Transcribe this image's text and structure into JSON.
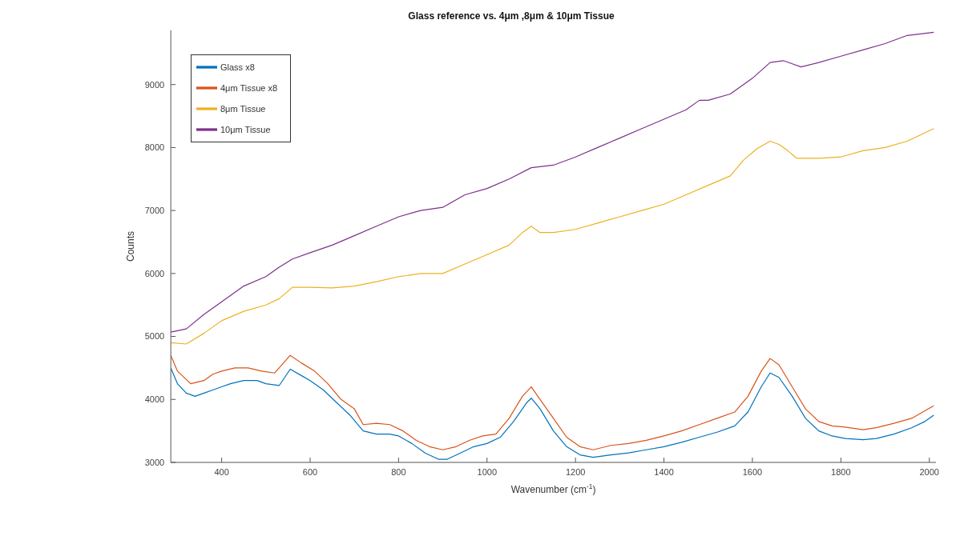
{
  "chart_data": {
    "type": "line",
    "title": "Glass reference vs. 4μm ,8μm & 10μm Tissue",
    "xlabel": "Wavenumber (cm$^{-1}$)",
    "ylabel": "Counts",
    "xlim": [
      285,
      2015
    ],
    "ylim": [
      3000,
      9860
    ],
    "xticks": [
      400,
      600,
      800,
      1000,
      1200,
      1400,
      1600,
      1800,
      2000
    ],
    "yticks": [
      3000,
      4000,
      5000,
      6000,
      7000,
      8000,
      9000
    ],
    "legend": "top left",
    "marker": "none",
    "line_style": "solid",
    "series": [
      {
        "name": "Glass x8",
        "color": "#0072bd",
        "x": [
          285,
          300,
          320,
          340,
          360,
          380,
          400,
          420,
          450,
          480,
          500,
          530,
          555,
          580,
          600,
          630,
          660,
          690,
          720,
          750,
          780,
          800,
          830,
          860,
          890,
          910,
          940,
          970,
          1000,
          1030,
          1060,
          1090,
          1100,
          1120,
          1150,
          1180,
          1210,
          1240,
          1280,
          1320,
          1360,
          1400,
          1440,
          1480,
          1520,
          1560,
          1590,
          1620,
          1640,
          1660,
          1690,
          1720,
          1750,
          1780,
          1810,
          1850,
          1880,
          1920,
          1960,
          1990,
          2010
        ],
        "values": [
          4500,
          4250,
          4100,
          4050,
          4100,
          4150,
          4200,
          4250,
          4300,
          4300,
          4250,
          4220,
          4480,
          4380,
          4300,
          4150,
          3950,
          3750,
          3500,
          3450,
          3450,
          3420,
          3300,
          3150,
          3050,
          3050,
          3150,
          3250,
          3300,
          3400,
          3650,
          3950,
          4020,
          3850,
          3500,
          3250,
          3120,
          3080,
          3120,
          3150,
          3200,
          3250,
          3320,
          3400,
          3480,
          3580,
          3800,
          4200,
          4420,
          4350,
          4050,
          3700,
          3500,
          3420,
          3380,
          3360,
          3380,
          3450,
          3550,
          3650,
          3750
        ]
      },
      {
        "name": "4μm Tissue x8",
        "color": "#d95319",
        "x": [
          285,
          300,
          330,
          360,
          380,
          400,
          430,
          460,
          490,
          520,
          555,
          580,
          610,
          640,
          670,
          700,
          720,
          750,
          780,
          810,
          840,
          870,
          900,
          930,
          960,
          990,
          1020,
          1050,
          1080,
          1100,
          1120,
          1150,
          1180,
          1210,
          1240,
          1280,
          1320,
          1360,
          1400,
          1440,
          1480,
          1520,
          1560,
          1590,
          1620,
          1640,
          1660,
          1690,
          1720,
          1750,
          1780,
          1810,
          1850,
          1880,
          1920,
          1960,
          1990,
          2010
        ],
        "values": [
          4700,
          4450,
          4250,
          4300,
          4400,
          4450,
          4500,
          4500,
          4450,
          4420,
          4700,
          4580,
          4450,
          4250,
          4000,
          3850,
          3600,
          3620,
          3600,
          3500,
          3350,
          3250,
          3200,
          3250,
          3350,
          3420,
          3450,
          3700,
          4050,
          4200,
          4000,
          3700,
          3400,
          3250,
          3200,
          3270,
          3300,
          3350,
          3420,
          3500,
          3600,
          3700,
          3800,
          4050,
          4450,
          4650,
          4550,
          4200,
          3850,
          3650,
          3580,
          3560,
          3520,
          3550,
          3620,
          3700,
          3820,
          3900
        ]
      },
      {
        "name": "8μm Tissue",
        "color": "#edb120",
        "x": [
          285,
          320,
          360,
          400,
          450,
          500,
          530,
          560,
          600,
          650,
          700,
          750,
          800,
          850,
          900,
          950,
          1000,
          1050,
          1080,
          1100,
          1120,
          1150,
          1200,
          1250,
          1300,
          1350,
          1400,
          1450,
          1500,
          1550,
          1580,
          1610,
          1640,
          1660,
          1680,
          1700,
          1750,
          1800,
          1850,
          1900,
          1950,
          2010
        ],
        "values": [
          4900,
          4880,
          5050,
          5250,
          5400,
          5500,
          5600,
          5780,
          5780,
          5770,
          5800,
          5870,
          5950,
          6000,
          6000,
          6150,
          6300,
          6450,
          6650,
          6750,
          6650,
          6650,
          6700,
          6800,
          6900,
          7000,
          7100,
          7250,
          7400,
          7550,
          7800,
          7980,
          8100,
          8050,
          7950,
          7830,
          7830,
          7850,
          7950,
          8000,
          8100,
          8300
        ]
      },
      {
        "name": "10μm Tissue",
        "color": "#7e2f8e",
        "x": [
          285,
          320,
          360,
          400,
          450,
          500,
          530,
          560,
          600,
          650,
          700,
          750,
          800,
          850,
          900,
          950,
          1000,
          1050,
          1100,
          1150,
          1200,
          1250,
          1300,
          1350,
          1400,
          1450,
          1480,
          1500,
          1550,
          1600,
          1640,
          1670,
          1690,
          1710,
          1750,
          1800,
          1850,
          1900,
          1950,
          2010
        ],
        "values": [
          5070,
          5120,
          5350,
          5550,
          5800,
          5950,
          6100,
          6230,
          6330,
          6450,
          6600,
          6750,
          6900,
          7000,
          7050,
          7250,
          7350,
          7500,
          7680,
          7720,
          7850,
          8000,
          8150,
          8300,
          8450,
          8600,
          8750,
          8750,
          8850,
          9100,
          9350,
          9380,
          9330,
          9280,
          9350,
          9450,
          9550,
          9650,
          9780,
          9830
        ]
      }
    ]
  }
}
